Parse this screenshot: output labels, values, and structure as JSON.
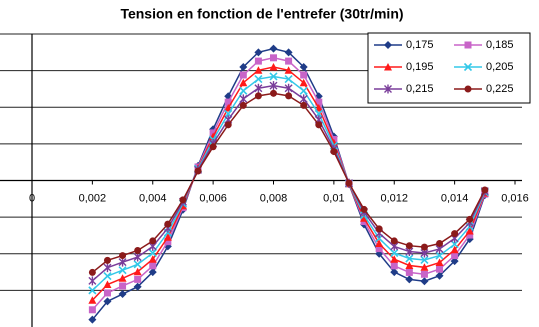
{
  "chart_data": {
    "type": "line",
    "title": "Tension en fonction de l'entrefer (30tr/min)",
    "x": [
      0.002,
      0.0025,
      0.003,
      0.0035,
      0.004,
      0.0045,
      0.005,
      0.0055,
      0.006,
      0.0065,
      0.007,
      0.0075,
      0.008,
      0.0085,
      0.009,
      0.0095,
      0.01,
      0.0105,
      0.011,
      0.0115,
      0.012,
      0.0125,
      0.013,
      0.0135,
      0.014,
      0.0145,
      0.015
    ],
    "series": [
      {
        "name": "0,175",
        "color": "#1f3c88",
        "marker": "diamond",
        "values": [
          -3.8,
          -3.3,
          -3.1,
          -2.9,
          -2.5,
          -1.8,
          -0.8,
          0.4,
          1.4,
          2.3,
          3.1,
          3.5,
          3.6,
          3.5,
          3.1,
          2.3,
          1.2,
          -0.1,
          -1.2,
          -2.0,
          -2.5,
          -2.7,
          -2.75,
          -2.6,
          -2.2,
          -1.6,
          -0.4
        ]
      },
      {
        "name": "0,185",
        "color": "#c864c8",
        "marker": "square",
        "values": [
          -3.53,
          -3.07,
          -2.88,
          -2.7,
          -2.33,
          -1.67,
          -0.74,
          0.37,
          1.3,
          2.14,
          2.88,
          3.26,
          3.35,
          3.26,
          2.88,
          2.14,
          1.12,
          -0.09,
          -1.12,
          -1.86,
          -2.33,
          -2.51,
          -2.56,
          -2.42,
          -2.05,
          -1.49,
          -0.37
        ]
      },
      {
        "name": "0,195",
        "color": "#ff1a1a",
        "marker": "triangle",
        "values": [
          -3.27,
          -2.84,
          -2.67,
          -2.49,
          -2.15,
          -1.55,
          -0.69,
          0.34,
          1.2,
          1.98,
          2.67,
          3.01,
          3.1,
          3.01,
          2.67,
          1.98,
          1.03,
          -0.09,
          -1.03,
          -1.72,
          -2.15,
          -2.32,
          -2.37,
          -2.24,
          -1.89,
          -1.38,
          -0.34
        ]
      },
      {
        "name": "0,205",
        "color": "#33c8e8",
        "marker": "x",
        "values": [
          -3.0,
          -2.61,
          -2.45,
          -2.29,
          -1.98,
          -1.42,
          -0.63,
          0.32,
          1.11,
          1.82,
          2.45,
          2.77,
          2.84,
          2.77,
          2.45,
          1.82,
          0.95,
          -0.08,
          -0.95,
          -1.58,
          -1.98,
          -2.13,
          -2.17,
          -2.05,
          -1.74,
          -1.26,
          -0.32
        ]
      },
      {
        "name": "0,215",
        "color": "#7a3d9a",
        "marker": "star",
        "values": [
          -2.74,
          -2.38,
          -2.23,
          -2.09,
          -1.8,
          -1.3,
          -0.58,
          0.29,
          1.01,
          1.66,
          2.23,
          2.52,
          2.59,
          2.52,
          2.23,
          1.66,
          0.86,
          -0.07,
          -0.86,
          -1.44,
          -1.8,
          -1.94,
          -1.98,
          -1.87,
          -1.58,
          -1.15,
          -0.29
        ]
      },
      {
        "name": "0,225",
        "color": "#8b1a1a",
        "marker": "circle",
        "values": [
          -2.51,
          -2.18,
          -2.05,
          -1.91,
          -1.65,
          -1.19,
          -0.53,
          0.26,
          0.92,
          1.52,
          2.05,
          2.31,
          2.38,
          2.31,
          2.05,
          1.52,
          0.79,
          -0.07,
          -0.79,
          -1.32,
          -1.65,
          -1.78,
          -1.82,
          -1.72,
          -1.45,
          -1.06,
          -0.26
        ]
      }
    ],
    "xlim": [
      0,
      0.016
    ],
    "xticks": [
      0,
      {
        "value": 0.002,
        "label": "0,002"
      },
      {
        "value": 0.004,
        "label": "0,004"
      },
      {
        "value": 0.006,
        "label": "0,006"
      },
      {
        "value": 0.008,
        "label": "0,008"
      },
      {
        "value": 0.01,
        "label": "0,01"
      },
      {
        "value": 0.012,
        "label": "0,012"
      },
      {
        "value": 0.014,
        "label": "0,014"
      },
      {
        "value": 0.016,
        "label": "0,016"
      }
    ],
    "ylim": [
      -4,
      4
    ],
    "yticks": [
      -3,
      -2,
      -1,
      0,
      1,
      2,
      3,
      4
    ],
    "grid": true,
    "legend": "top-right"
  }
}
